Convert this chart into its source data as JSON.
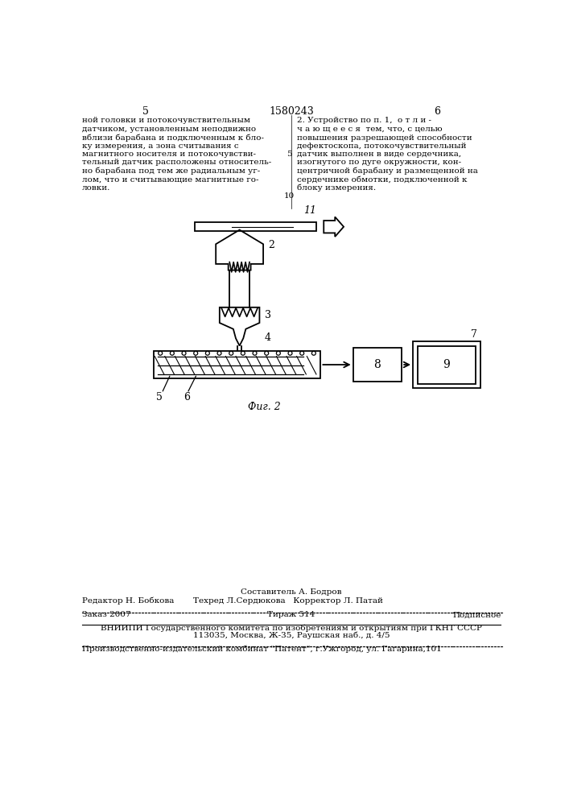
{
  "bg_color": "#ffffff",
  "text_color": "#000000",
  "line_color": "#000000",
  "page_number_left": "5",
  "page_number_center": "1580243",
  "page_number_right": "6",
  "left_text_lines": [
    "ной головки и потокочувствительным",
    "датчиком, установленным неподвижно",
    "вблизи барабана и подключенным к бло-",
    "ку измерения, а зона считывания с",
    "магнитного носителя и потокочувстви-",
    "тельный датчик расположены относитель-",
    "но барабана под тем же радиальным уг-",
    "лом, что и считывающие магнитные го-",
    "ловки."
  ],
  "right_text_lines": [
    "2. Устройство по п. 1,  о т л и -",
    "ч а ю щ е е с я  тем, что, с целью",
    "повышения разрешающей способности",
    "дефектоскопа, потокочувствительный",
    "датчик выполнен в виде сердечника,",
    "изогнутого по дуге окружности, кон-",
    "центричной барабану и размещенной на",
    "сердечнике обмотки, подключенной к",
    "блоку измерения."
  ],
  "line_number_5": "5",
  "line_number_10": "10",
  "fig_caption": "Фиг. 2",
  "label_11": "11",
  "label_2": "2",
  "label_3": "3",
  "label_4": "4",
  "label_5": "5",
  "label_6": "6",
  "label_7": "7",
  "label_8": "8",
  "label_9": "9",
  "footer_sestavitel": "Составитель А. Бодров",
  "footer_editor": "Редактор Н. Бобкова",
  "footer_techred": "Техред Л.Сердюкова   Корректор Л. Патай",
  "footer_zakaz": "Заказ 2007",
  "footer_tirazh": "Тираж 514",
  "footer_podpisnoe": "Подписное",
  "footer_vniishi": "ВНИИПИ Государственного комитета по изобретениям и открытиям при ГКНТ СССР",
  "footer_address": "113035, Москва, Ж-35, Раушская наб., д. 4/5",
  "footer_proizv": "Производственно-издательский комбинат \"Патент\", г.Ужгород, ул. Гагарина,101"
}
